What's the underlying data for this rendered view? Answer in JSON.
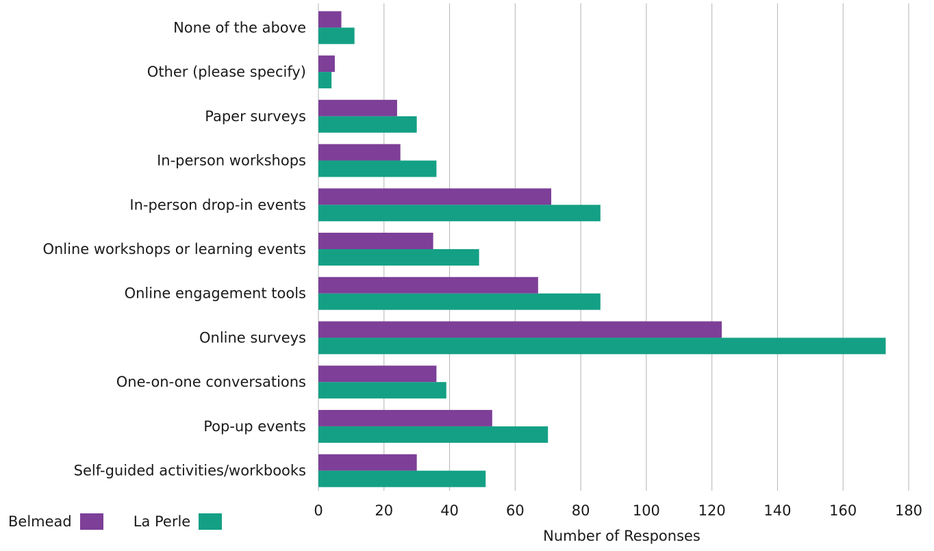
{
  "chart_data": {
    "type": "bar",
    "orientation": "horizontal",
    "categories": [
      "None of the above",
      "Other (please specify)",
      "Paper surveys",
      "In-person workshops",
      "In-person drop-in events",
      "Online workshops or learning events",
      "Online engagement tools",
      "Online surveys",
      "One-on-one conversations",
      "Pop-up events",
      "Self-guided activities/workbooks"
    ],
    "series": [
      {
        "name": "Belmead",
        "color": "#7d3f98",
        "values": [
          7,
          5,
          24,
          25,
          71,
          35,
          67,
          123,
          36,
          53,
          30
        ]
      },
      {
        "name": "La Perle",
        "color": "#14a085",
        "values": [
          11,
          4,
          30,
          36,
          86,
          49,
          86,
          173,
          39,
          70,
          51
        ]
      }
    ],
    "xlabel": "Number of Responses",
    "xlim": [
      0,
      180
    ],
    "xticks": [
      0,
      20,
      40,
      60,
      80,
      100,
      120,
      140,
      160,
      180
    ],
    "grid": "vertical",
    "legend_position": "bottom-left"
  }
}
